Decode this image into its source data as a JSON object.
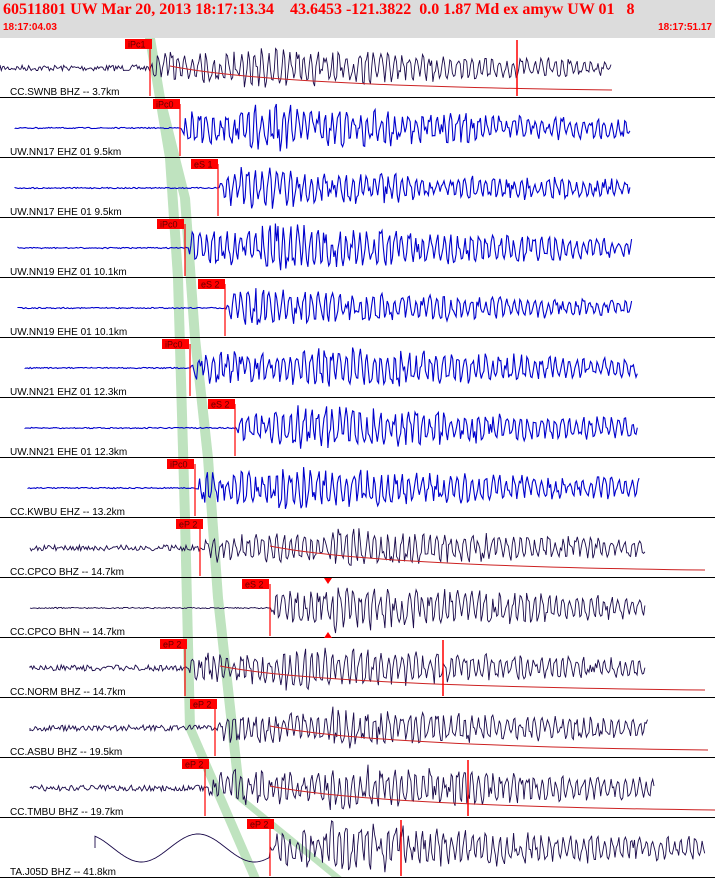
{
  "header": {
    "title": "60511801 UW Mar 20, 2013 18:17:13.34    43.6453 -121.3822  0.0 1.87 Md ex amyw UW 01   8",
    "time_start": "18:17:04.03",
    "time_end": "18:17:51.17"
  },
  "colors": {
    "header_bg": "#dcdcdc",
    "title": "#ff0000",
    "pick": "#ff0000",
    "trace_blue": "#0000cc",
    "trace_dark": "#1a0a4a",
    "band": "#bfe3bf",
    "envelope": "#cc2222"
  },
  "chart_data": {
    "type": "line",
    "x_unit": "time",
    "xlim": [
      "18:17:04.03",
      "18:17:51.17"
    ],
    "grid": false,
    "series": [
      {
        "name": "CC.SWNB BHZ --  3.7km",
        "pick": "iPc1",
        "color": "#1a0a4a"
      },
      {
        "name": "UW.NN17 EHZ 01  9.5km",
        "pick": "iPc0",
        "color": "#0000cc"
      },
      {
        "name": "UW.NN17 EHE 01  9.5km",
        "pick": "eS 1",
        "color": "#0000cc"
      },
      {
        "name": "UW.NN19 EHZ 01 10.1km",
        "pick": "iPc0",
        "color": "#0000cc"
      },
      {
        "name": "UW.NN19 EHE 01 10.1km",
        "pick": "eS 2",
        "color": "#0000cc"
      },
      {
        "name": "UW.NN21 EHZ 01 12.3km",
        "pick": "iPc0",
        "color": "#0000cc"
      },
      {
        "name": "UW.NN21 EHE 01 12.3km",
        "pick": "eS 2",
        "color": "#0000cc"
      },
      {
        "name": "CC.KWBU EHZ -- 13.2km",
        "pick": "iPc0",
        "color": "#0000cc"
      },
      {
        "name": "CC.CPCO BHZ -- 14.7km",
        "pick": "eP 2",
        "color": "#1a0a4a"
      },
      {
        "name": "CC.CPCO BHN -- 14.7km",
        "pick": "eS 2",
        "color": "#1a0a4a"
      },
      {
        "name": "CC.NORM BHZ -- 14.7km",
        "pick": "eP 2",
        "color": "#1a0a4a"
      },
      {
        "name": "CC.ASBU BHZ -- 19.5km",
        "pick": "eP 2",
        "color": "#1a0a4a"
      },
      {
        "name": "CC.TMBU BHZ -- 19.7km",
        "pick": "eP 2",
        "color": "#1a0a4a"
      },
      {
        "name": "TA.J05D BHZ -- 41.8km",
        "pick": "eP 2",
        "color": "#1a0a4a"
      }
    ]
  }
}
